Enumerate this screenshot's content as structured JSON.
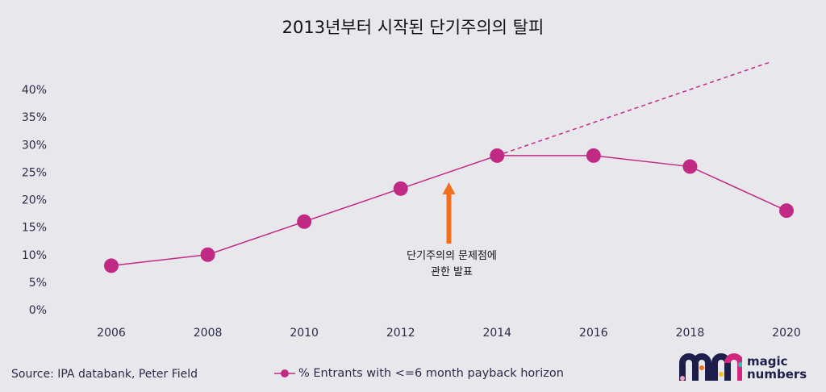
{
  "chart_data": {
    "type": "line",
    "title": "2013년부터 시작된 단기주의의 탈피",
    "xlabel": "",
    "ylabel": "",
    "x": [
      2006,
      2008,
      2010,
      2012,
      2014,
      2016,
      2018,
      2020
    ],
    "series": [
      {
        "name": "% Entrants with <=6 month payback horizon",
        "values": [
          8,
          10,
          16,
          22,
          28,
          28,
          26,
          18
        ],
        "color": "#c02a84"
      }
    ],
    "trend": {
      "style": "dashed",
      "from": [
        2014,
        28
      ],
      "to": [
        2020,
        45
      ]
    },
    "ylim": [
      0,
      40
    ],
    "yticks": [
      "0%",
      "5%",
      "10%",
      "15%",
      "20%",
      "25%",
      "30%",
      "35%",
      "40%"
    ],
    "xticks": [
      "2006",
      "2008",
      "2010",
      "2012",
      "2014",
      "2016",
      "2018",
      "2020"
    ],
    "annotation": {
      "line1": "단기주의의 문제점에",
      "line2": "관한 발표",
      "x": 2013,
      "arrow_color": "#f07020"
    },
    "legend_position": "bottom-center",
    "grid": false
  },
  "source": "Source: IPA databank, Peter Field",
  "logo": {
    "line1": "magic",
    "line2": "numbers"
  }
}
